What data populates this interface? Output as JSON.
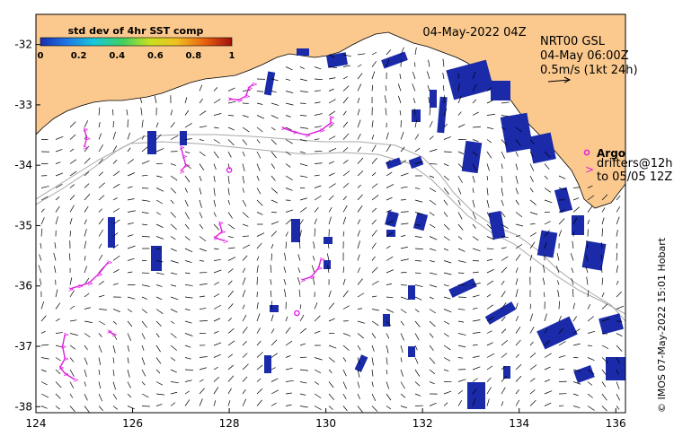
{
  "date_label": "04-May-2022 04Z",
  "product": {
    "line1": "NRT00 GSL",
    "line2": "04-May 06:00Z",
    "line3": "0.5m/s (1kt 24h)"
  },
  "colorbar": {
    "title": "std dev of 4hr SST comp",
    "ticks": [
      "0",
      "0.2",
      "0.4",
      "0.6",
      "0.8",
      "1"
    ],
    "colors": [
      "#1a2eb0",
      "#1e78e6",
      "#18c8d8",
      "#40d060",
      "#c8e020",
      "#f0c020",
      "#e86010",
      "#a01010"
    ]
  },
  "legend": {
    "argo": "Argo",
    "drifters_line1": "drifters@12h",
    "drifters_line2": "to 05/05 12Z"
  },
  "credit": "© IMOS 07-May-2022 15:01 Hobart",
  "axes": {
    "lon_ticks": [
      "124",
      "126",
      "128",
      "130",
      "132",
      "134",
      "136"
    ],
    "lat_ticks": [
      "-32",
      "-33",
      "-34",
      "-35",
      "-36",
      "-37",
      "-38"
    ],
    "lon_range": [
      124,
      136.2
    ],
    "lat_range": [
      -31.5,
      -38.1
    ]
  },
  "colors": {
    "land": "#fbc98e",
    "cloud_patch": "#1a2aa8",
    "argo": "#e020e0",
    "drifter": "#e020e0",
    "contour": "#a8a8a8",
    "arrow": "#000000"
  },
  "argo_floats": [
    {
      "lon": 128.0,
      "lat": -34.08
    },
    {
      "lon": 129.4,
      "lat": -36.45
    }
  ],
  "drifters": [
    [
      [
        128.0,
        -32.9
      ],
      [
        128.2,
        -32.92
      ],
      [
        128.35,
        -32.85
      ],
      [
        128.4,
        -32.72
      ],
      [
        128.5,
        -32.65
      ]
    ],
    [
      [
        129.1,
        -33.38
      ],
      [
        129.35,
        -33.45
      ],
      [
        129.6,
        -33.5
      ],
      [
        129.9,
        -33.42
      ],
      [
        130.1,
        -33.3
      ],
      [
        130.1,
        -33.2
      ]
    ],
    [
      [
        125.0,
        -33.4
      ],
      [
        125.05,
        -33.55
      ],
      [
        125.0,
        -33.7
      ]
    ],
    [
      [
        127.0,
        -33.7
      ],
      [
        127.05,
        -33.85
      ],
      [
        127.1,
        -34.0
      ],
      [
        127.0,
        -34.1
      ]
    ],
    [
      [
        127.8,
        -34.95
      ],
      [
        127.85,
        -35.1
      ],
      [
        127.7,
        -35.2
      ],
      [
        127.9,
        -35.25
      ]
    ],
    [
      [
        129.9,
        -35.55
      ],
      [
        129.85,
        -35.7
      ],
      [
        129.7,
        -35.85
      ],
      [
        129.5,
        -35.9
      ]
    ],
    [
      [
        124.7,
        -36.05
      ],
      [
        124.9,
        -36.0
      ],
      [
        125.1,
        -35.95
      ],
      [
        125.3,
        -35.8
      ],
      [
        125.5,
        -35.6
      ]
    ],
    [
      [
        124.6,
        -36.8
      ],
      [
        124.55,
        -37.0
      ],
      [
        124.6,
        -37.2
      ],
      [
        124.5,
        -37.35
      ],
      [
        124.6,
        -37.45
      ],
      [
        124.8,
        -37.55
      ]
    ],
    [
      [
        125.5,
        -36.75
      ],
      [
        125.6,
        -36.8
      ]
    ]
  ]
}
